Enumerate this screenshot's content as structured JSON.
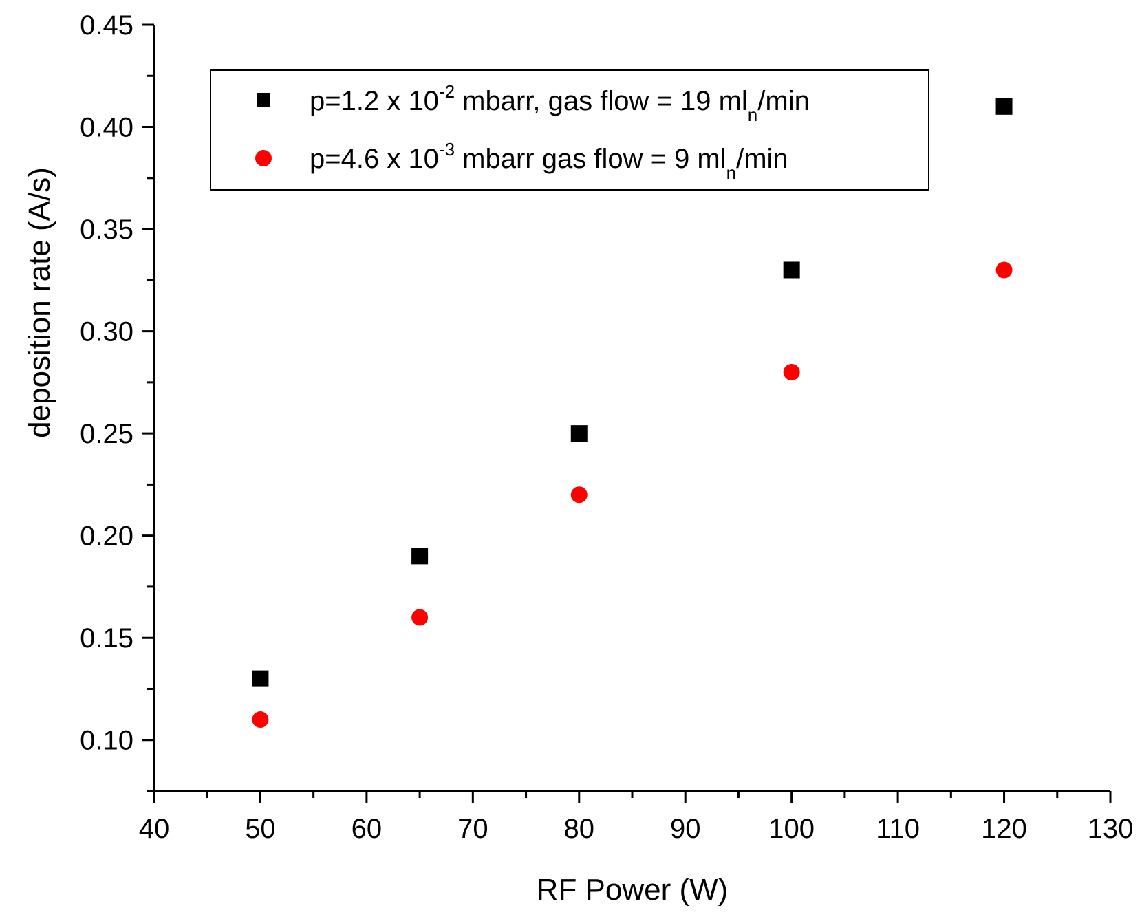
{
  "chart_data": {
    "type": "scatter",
    "title": "",
    "xlabel": "RF Power (W)",
    "ylabel": "deposition rate (A/s)",
    "xlim": [
      40,
      130
    ],
    "ylim": [
      0.075,
      0.45
    ],
    "x_ticks": [
      "40",
      "50",
      "60",
      "70",
      "80",
      "90",
      "100",
      "110",
      "120",
      "130"
    ],
    "y_ticks": [
      "0.10",
      "0.15",
      "0.20",
      "0.25",
      "0.30",
      "0.35",
      "0.40",
      "0.45"
    ],
    "grid": false,
    "legend_position": "top",
    "series": [
      {
        "name": "p=1.2 x 10-2 mbarr, gas flow = 19 mln/min",
        "legend": {
          "pre": "p=1.2 x 10",
          "sup": "-2",
          "mid": " mbarr, gas flow = 19 ml",
          "sub": "n",
          "post": "/min"
        },
        "marker": "square",
        "color": "#000000",
        "x": [
          50,
          65,
          80,
          100,
          120
        ],
        "y": [
          0.13,
          0.19,
          0.25,
          0.33,
          0.41
        ]
      },
      {
        "name": "p=4.6 x 10-3 mbarr gas flow = 9 mln/min",
        "legend": {
          "pre": "p=4.6 x 10",
          "sup": "-3",
          "mid": " mbarr gas flow = 9 ml",
          "sub": "n",
          "post": "/min"
        },
        "marker": "circle",
        "color": "#ff0000",
        "x": [
          50,
          65,
          80,
          100,
          120
        ],
        "y": [
          0.11,
          0.16,
          0.22,
          0.28,
          0.33
        ]
      }
    ]
  }
}
